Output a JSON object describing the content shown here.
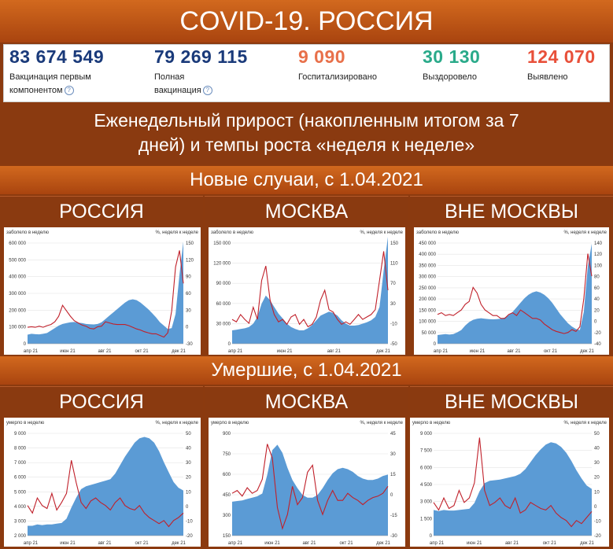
{
  "header": {
    "title": "COVID-19. РОССИЯ"
  },
  "stats": [
    {
      "value": "83 674 549",
      "label1": "Вакцинация первым",
      "label2": "компонентом",
      "help": "?",
      "color": "#1a3a7a"
    },
    {
      "value": "79 269 115",
      "label1": "Полная",
      "label2": "вакцинация",
      "help": "?",
      "color": "#1a3a7a"
    },
    {
      "value": "9 090",
      "label1": "Госпитализировано",
      "label2": "",
      "help": "",
      "color": "#e8704a"
    },
    {
      "value": "30 130",
      "label1": "Выздоровело",
      "label2": "",
      "help": "",
      "color": "#2aaa8a"
    },
    {
      "value": "124 070",
      "label1": "Выявлено",
      "label2": "",
      "help": "",
      "color": "#e8503a"
    }
  ],
  "weekly": {
    "line1": "Еженедельный прирост (накопленным итогом за 7",
    "line2": "дней) и темпы роста «неделя к неделе»"
  },
  "sections": {
    "cases": "Новые случаи, с 1.04.2021",
    "deaths": "Умершие, с 1.04.2021"
  },
  "panels": {
    "russia": "РОССИЯ",
    "moscow": "МОСКВА",
    "outside": "ВНЕ МОСКВЫ"
  },
  "colors": {
    "area": "#5b9bd5",
    "line": "#c0202a"
  },
  "chart_data": [
    {
      "id": "cases-russia",
      "type": "area",
      "ylabel_left": "заболело в неделю",
      "ylabel_right": "%, неделя к неделе",
      "left_ticks": [
        "600 000",
        "500 000",
        "400 000",
        "300 000",
        "200 000",
        "100 000",
        "0"
      ],
      "left_max": 650000,
      "right_ticks": [
        "150",
        "120",
        "90",
        "60",
        "30",
        "0",
        "-30"
      ],
      "right_min": -30,
      "right_max": 165,
      "x_ticks": [
        "апр 21",
        "июн 21",
        "авг 21",
        "окт 21",
        "дек 21"
      ],
      "area": [
        55000,
        60000,
        58000,
        57000,
        60000,
        65000,
        80000,
        95000,
        110000,
        120000,
        125000,
        130000,
        132000,
        128000,
        125000,
        120000,
        118000,
        117000,
        120000,
        130000,
        150000,
        170000,
        190000,
        210000,
        230000,
        250000,
        265000,
        270000,
        265000,
        250000,
        230000,
        210000,
        185000,
        160000,
        130000,
        110000,
        90000,
        95000,
        180000,
        420000,
        620000
      ],
      "line": [
        0,
        1,
        0,
        2,
        0,
        3,
        5,
        10,
        20,
        40,
        30,
        20,
        12,
        8,
        4,
        2,
        -2,
        -3,
        1,
        2,
        10,
        8,
        6,
        5,
        5,
        5,
        3,
        0,
        -3,
        -5,
        -8,
        -10,
        -12,
        -12,
        -15,
        -18,
        -10,
        30,
        110,
        140,
        80
      ]
    },
    {
      "id": "cases-moscow",
      "type": "area",
      "ylabel_left": "заболело в неделю",
      "ylabel_right": "%, неделя к неделе",
      "left_ticks": [
        "150 000",
        "120 000",
        "90 000",
        "60 000",
        "30 000",
        "0"
      ],
      "left_max": 160000,
      "right_ticks": [
        "150",
        "110",
        "70",
        "30",
        "-10",
        "-50"
      ],
      "right_min": -50,
      "right_max": 170,
      "x_ticks": [
        "апр 21",
        "июн 21",
        "авг 21",
        "дек 21"
      ],
      "area": [
        20000,
        21000,
        22000,
        23000,
        25000,
        30000,
        40000,
        60000,
        72000,
        65000,
        55000,
        45000,
        38000,
        30000,
        25000,
        22000,
        20000,
        20000,
        23000,
        28000,
        35000,
        42000,
        45000,
        48000,
        46000,
        42000,
        35000,
        30000,
        27000,
        27000,
        28000,
        30000,
        32000,
        35000,
        40000,
        55000,
        110000,
        160000
      ],
      "line": [
        0,
        -5,
        10,
        0,
        -8,
        25,
        0,
        80,
        110,
        40,
        10,
        -5,
        0,
        -10,
        5,
        10,
        -10,
        0,
        -15,
        -10,
        5,
        40,
        60,
        20,
        15,
        0,
        -10,
        -5,
        -10,
        0,
        10,
        0,
        5,
        10,
        20,
        80,
        140,
        60
      ]
    },
    {
      "id": "cases-outside",
      "type": "area",
      "ylabel_left": "заболело в неделю",
      "ylabel_right": "%, неделя к неделе",
      "left_ticks": [
        "450 000",
        "400 000",
        "350 000",
        "300 000",
        "250 000",
        "200 000",
        "150 000",
        "100 000",
        "50 000",
        "0"
      ],
      "left_max": 470000,
      "right_ticks": [
        "140",
        "120",
        "100",
        "80",
        "60",
        "40",
        "20",
        "0",
        "-20",
        "-40"
      ],
      "right_min": -40,
      "right_max": 150,
      "x_ticks": [
        "апр 21",
        "июн 21",
        "авг 21",
        "окт 21",
        "дек 21"
      ],
      "area": [
        38000,
        40000,
        42000,
        40000,
        42000,
        50000,
        60000,
        80000,
        95000,
        105000,
        110000,
        112000,
        110000,
        108000,
        107000,
        108000,
        110000,
        115000,
        125000,
        140000,
        160000,
        180000,
        200000,
        215000,
        225000,
        230000,
        225000,
        215000,
        200000,
        180000,
        155000,
        130000,
        110000,
        90000,
        75000,
        65000,
        60000,
        140000,
        340000,
        440000
      ],
      "line": [
        12,
        15,
        10,
        12,
        10,
        15,
        20,
        30,
        35,
        60,
        50,
        30,
        20,
        15,
        10,
        10,
        5,
        5,
        12,
        15,
        10,
        20,
        15,
        10,
        5,
        5,
        2,
        -5,
        -10,
        -15,
        -18,
        -20,
        -22,
        -20,
        -15,
        -18,
        -10,
        40,
        120,
        80
      ]
    },
    {
      "id": "deaths-russia",
      "type": "area",
      "ylabel_left": "умерло в неделю",
      "ylabel_right": "%, неделя к неделе",
      "left_ticks": [
        "9 000",
        "8 000",
        "7 000",
        "6 000",
        "5 000",
        "4 000",
        "3 000",
        "2 000"
      ],
      "left_min": 1800,
      "left_max": 9500,
      "right_ticks": [
        "50",
        "40",
        "30",
        "20",
        "10",
        "0",
        "-10",
        "-20"
      ],
      "right_min": -20,
      "right_max": 52,
      "x_ticks": [
        "апр 21",
        "июн 21",
        "авг 21",
        "окт 21",
        "дек 21"
      ],
      "area": [
        2500,
        2500,
        2600,
        2550,
        2600,
        2600,
        2650,
        2700,
        3000,
        3800,
        4500,
        5100,
        5300,
        5400,
        5500,
        5600,
        5700,
        5800,
        6200,
        6800,
        7400,
        7900,
        8400,
        8700,
        8800,
        8700,
        8400,
        7800,
        7000,
        6300,
        5600,
        5200,
        5000
      ],
      "line": [
        0,
        -5,
        5,
        0,
        -2,
        8,
        -3,
        2,
        8,
        30,
        15,
        2,
        -2,
        3,
        5,
        2,
        0,
        -3,
        2,
        5,
        0,
        -2,
        -3,
        0,
        -5,
        -8,
        -10,
        -12,
        -10,
        -14,
        -10,
        -8,
        -5
      ]
    },
    {
      "id": "deaths-moscow",
      "type": "area",
      "ylabel_left": "умерло в неделю",
      "ylabel_right": "%, неделя к неделе",
      "left_ticks": [
        "900",
        "750",
        "600",
        "450",
        "300",
        "150"
      ],
      "left_min": 150,
      "left_max": 950,
      "right_ticks": [
        "45",
        "30",
        "15",
        "0",
        "-15",
        "-30"
      ],
      "right_min": -30,
      "right_max": 47,
      "x_ticks": [
        "апр 21",
        "июн 21",
        "авг 21",
        "окт 21",
        "дек 21"
      ],
      "area": [
        400,
        405,
        410,
        420,
        430,
        440,
        460,
        600,
        780,
        820,
        760,
        650,
        560,
        500,
        450,
        430,
        430,
        450,
        500,
        560,
        610,
        640,
        650,
        640,
        620,
        590,
        570,
        560,
        560,
        570,
        590,
        600
      ],
      "line": [
        0,
        2,
        -2,
        4,
        0,
        2,
        10,
        35,
        25,
        -10,
        -25,
        -15,
        5,
        -8,
        -3,
        15,
        20,
        -5,
        -15,
        -5,
        2,
        -5,
        -5,
        0,
        -3,
        -5,
        -8,
        -5,
        -3,
        -2,
        0,
        5
      ]
    },
    {
      "id": "deaths-outside",
      "type": "area",
      "ylabel_left": "умерло в неделю",
      "ylabel_right": "%, неделя к неделе",
      "left_ticks": [
        "9 000",
        "7 500",
        "6 000",
        "4 500",
        "3 000",
        "1 500",
        "0"
      ],
      "left_min": 0,
      "left_max": 9300,
      "right_ticks": [
        "50",
        "40",
        "30",
        "20",
        "10",
        "0",
        "-10",
        "-20"
      ],
      "right_min": -20,
      "right_max": 52,
      "x_ticks": [
        "апр 21",
        "июн 21",
        "авг 21",
        "окт 21",
        "дек 21"
      ],
      "area": [
        2200,
        2100,
        2200,
        2150,
        2150,
        2200,
        2250,
        2300,
        2800,
        3800,
        4500,
        4700,
        4750,
        4800,
        4900,
        5000,
        5100,
        5300,
        5700,
        6300,
        6900,
        7400,
        7800,
        8000,
        7900,
        7600,
        7100,
        6400,
        5600,
        4900,
        4300,
        4000
      ],
      "line": [
        2,
        -3,
        5,
        -2,
        0,
        10,
        2,
        5,
        15,
        45,
        10,
        0,
        2,
        5,
        0,
        -2,
        5,
        -5,
        -3,
        2,
        0,
        -2,
        -3,
        0,
        -5,
        -8,
        -10,
        -14,
        -10,
        -12,
        -8,
        -4
      ]
    }
  ]
}
